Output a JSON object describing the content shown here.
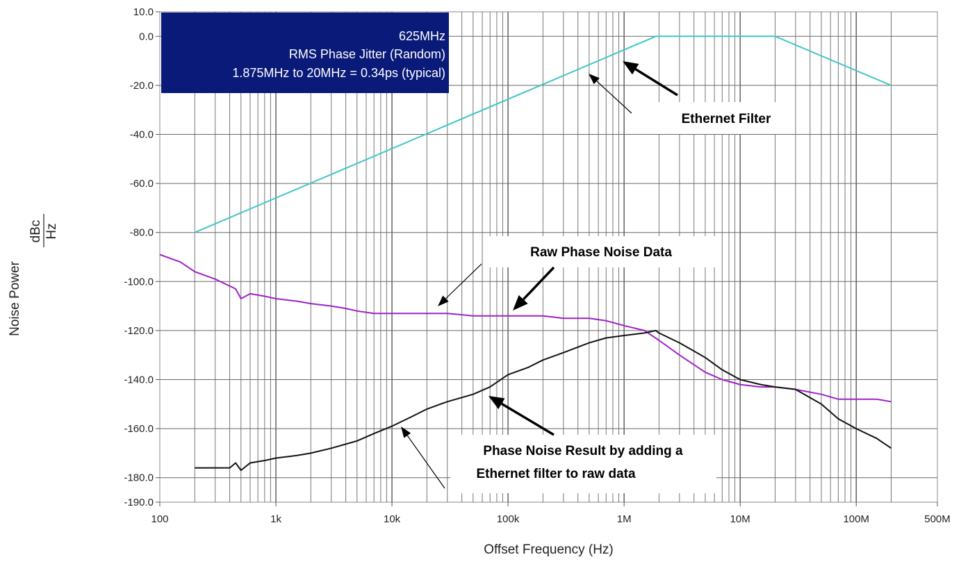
{
  "chart_data": {
    "type": "line",
    "title": "",
    "xlabel": "Offset Frequency (Hz)",
    "ylabel": "Noise Power",
    "ylabel_unit_num": "dBc",
    "ylabel_unit_den": "Hz",
    "x_scale": "log",
    "xlim": [
      100,
      500000000
    ],
    "ylim": [
      -190,
      10
    ],
    "grid": true,
    "x_ticks": [
      {
        "value": 100,
        "label": "100"
      },
      {
        "value": 1000,
        "label": "1k"
      },
      {
        "value": 10000,
        "label": "10k"
      },
      {
        "value": 100000,
        "label": "100k"
      },
      {
        "value": 1000000,
        "label": "1M"
      },
      {
        "value": 10000000,
        "label": "10M"
      },
      {
        "value": 100000000,
        "label": "100M"
      },
      {
        "value": 500000000,
        "label": "500M"
      }
    ],
    "y_ticks": [
      {
        "value": 10,
        "label": "10.0"
      },
      {
        "value": 0,
        "label": "0.0"
      },
      {
        "value": -20,
        "label": "-20.0"
      },
      {
        "value": -40,
        "label": "-40.0"
      },
      {
        "value": -60,
        "label": "-60.0"
      },
      {
        "value": -80,
        "label": "-80.0"
      },
      {
        "value": -100,
        "label": "-100.0"
      },
      {
        "value": -120,
        "label": "-120.0"
      },
      {
        "value": -140,
        "label": "-140.0"
      },
      {
        "value": -160,
        "label": "-160.0"
      },
      {
        "value": -180,
        "label": "-180.0"
      },
      {
        "value": -190,
        "label": "-190.0"
      }
    ],
    "series": [
      {
        "key": "ethernet-filter",
        "color": "#3fc6c6",
        "x": [
          200,
          1875000,
          20000000,
          200000000
        ],
        "y": [
          -80,
          0,
          0,
          -20
        ]
      },
      {
        "key": "raw-phase-noise",
        "color": "#a020c8",
        "x": [
          100,
          150,
          200,
          300,
          450,
          500,
          600,
          800,
          1000,
          1500,
          2000,
          3000,
          4000,
          5000,
          7000,
          10000,
          15000,
          20000,
          30000,
          50000,
          70000,
          100000,
          150000,
          200000,
          300000,
          500000,
          700000,
          1000000,
          1500000,
          2000000,
          3000000,
          5000000,
          7000000,
          10000000,
          15000000,
          20000000,
          30000000,
          50000000,
          70000000,
          100000000,
          150000000,
          200000000
        ],
        "y": [
          -89,
          -92,
          -96,
          -99,
          -103,
          -107,
          -105,
          -106,
          -107,
          -108,
          -109,
          -110,
          -111,
          -112,
          -113,
          -113,
          -113,
          -113,
          -113,
          -114,
          -114,
          -114,
          -114,
          -114,
          -115,
          -115,
          -116,
          -118,
          -120,
          -124,
          -130,
          -137,
          -140,
          -142,
          -143,
          -143,
          -144,
          -146,
          -148,
          -148,
          -148,
          -149
        ]
      },
      {
        "key": "filtered-phase-noise",
        "color": "#111111",
        "x": [
          200,
          300,
          400,
          450,
          500,
          600,
          800,
          1000,
          1500,
          2000,
          3000,
          5000,
          7000,
          10000,
          15000,
          20000,
          30000,
          50000,
          70000,
          100000,
          150000,
          200000,
          300000,
          500000,
          700000,
          1000000,
          1500000,
          1875000,
          2000000,
          3000000,
          5000000,
          7000000,
          10000000,
          15000000,
          20000000,
          30000000,
          50000000,
          70000000,
          100000000,
          150000000,
          200000000
        ],
        "y": [
          -176,
          -176,
          -176,
          -174,
          -177,
          -174,
          -173,
          -172,
          -171,
          -170,
          -168,
          -165,
          -162,
          -159,
          -155,
          -152,
          -149,
          -146,
          -143,
          -138,
          -135,
          -132,
          -129,
          -125,
          -123,
          -122,
          -121,
          -120,
          -121,
          -125,
          -131,
          -136,
          -140,
          -142,
          -143,
          -144,
          -150,
          -156,
          -160,
          -164,
          -168
        ]
      }
    ],
    "annotations": [
      {
        "key": "ethernet",
        "lines": [
          "Ethernet Filter"
        ]
      },
      {
        "key": "raw",
        "lines": [
          "Raw Phase Noise Data"
        ]
      },
      {
        "key": "result",
        "lines": [
          "Phase Noise Result by adding a",
          "Ethernet filter to raw data"
        ]
      }
    ],
    "info_box": {
      "lines": [
        "625MHz",
        "RMS Phase Jitter (Random)",
        "1.875MHz to 20MHz = 0.34ps (typical)"
      ],
      "bg": "#0a1a78",
      "fg": "#ffffff"
    }
  }
}
